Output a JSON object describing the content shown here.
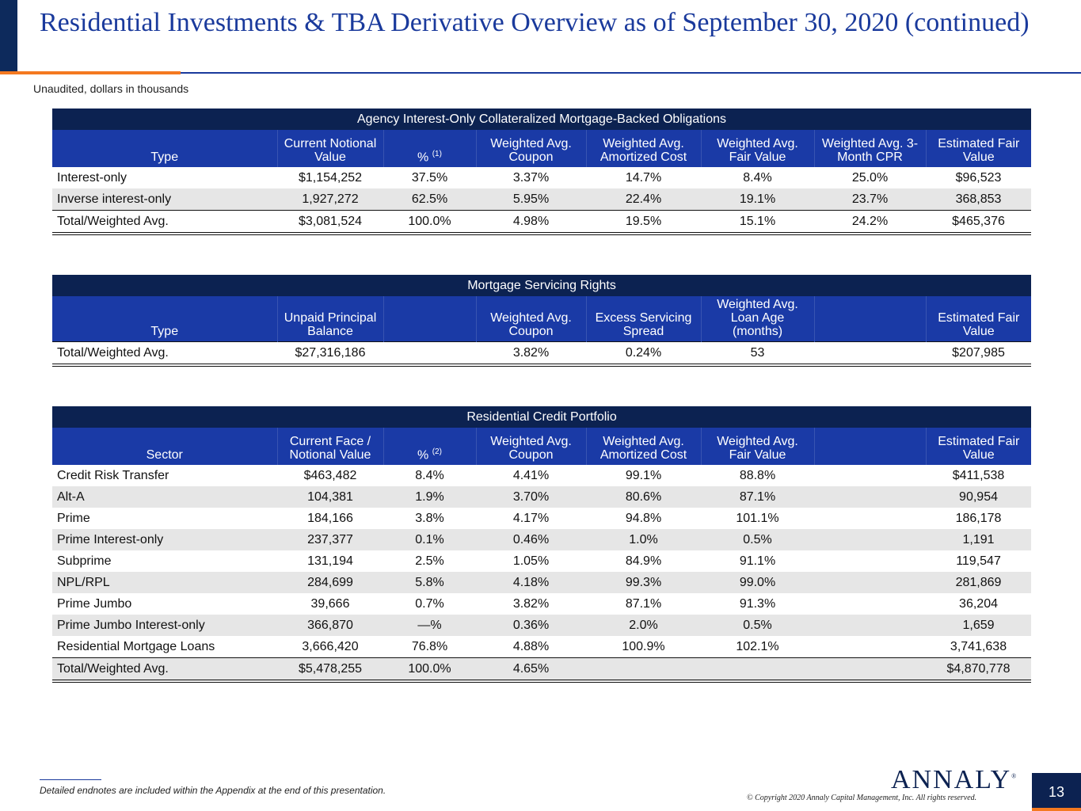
{
  "header": {
    "title": "Residential Investments & TBA Derivative Overview as of September 30, 2020 (continued)",
    "subtitle": "Unaudited, dollars in thousands"
  },
  "table_agency": {
    "caption": "Agency Interest-Only Collateralized Mortgage-Backed Obligations",
    "columns": [
      "Type",
      "Current Notional Value",
      "%",
      "Weighted Avg. Coupon",
      "Weighted Avg. Amortized Cost",
      "Weighted Avg. Fair Value",
      "Weighted Avg. 3-Month CPR",
      "Estimated Fair Value"
    ],
    "pct_note": "(1)",
    "rows": [
      [
        "Interest-only",
        "$1,154,252",
        "37.5%",
        "3.37%",
        "14.7%",
        "8.4%",
        "25.0%",
        "$96,523"
      ],
      [
        "Inverse interest-only",
        "1,927,272",
        "62.5%",
        "5.95%",
        "22.4%",
        "19.1%",
        "23.7%",
        "368,853"
      ]
    ],
    "total": [
      "Total/Weighted Avg.",
      "$3,081,524",
      "100.0%",
      "4.98%",
      "19.5%",
      "15.1%",
      "24.2%",
      "$465,376"
    ]
  },
  "table_msr": {
    "caption": "Mortgage Servicing Rights",
    "columns": [
      "Type",
      "Unpaid Principal Balance",
      "",
      "Weighted Avg. Coupon",
      "Excess Servicing Spread",
      "Weighted Avg. Loan Age (months)",
      "",
      "Estimated Fair Value"
    ],
    "total": [
      "Total/Weighted Avg.",
      "$27,316,186",
      "",
      "3.82%",
      "0.24%",
      "53",
      "",
      "$207,985"
    ]
  },
  "table_credit": {
    "caption": "Residential Credit Portfolio",
    "columns": [
      "Sector",
      "Current Face / Notional Value",
      "%",
      "Weighted Avg. Coupon",
      "Weighted Avg. Amortized Cost",
      "Weighted Avg. Fair Value",
      "",
      "Estimated Fair Value"
    ],
    "pct_note": "(2)",
    "rows": [
      [
        "Credit Risk Transfer",
        "$463,482",
        "8.4%",
        "4.41%",
        "99.1%",
        "88.8%",
        "",
        "$411,538"
      ],
      [
        "Alt-A",
        "104,381",
        "1.9%",
        "3.70%",
        "80.6%",
        "87.1%",
        "",
        "90,954"
      ],
      [
        "Prime",
        "184,166",
        "3.8%",
        "4.17%",
        "94.8%",
        "101.1%",
        "",
        "186,178"
      ],
      [
        "Prime Interest-only",
        "237,377",
        "0.1%",
        "0.46%",
        "1.0%",
        "0.5%",
        "",
        "1,191"
      ],
      [
        "Subprime",
        "131,194",
        "2.5%",
        "1.05%",
        "84.9%",
        "91.1%",
        "",
        "119,547"
      ],
      [
        "NPL/RPL",
        "284,699",
        "5.8%",
        "4.18%",
        "99.3%",
        "99.0%",
        "",
        "281,869"
      ],
      [
        "Prime Jumbo",
        "39,666",
        "0.7%",
        "3.82%",
        "87.1%",
        "91.3%",
        "",
        "36,204"
      ],
      [
        "Prime Jumbo Interest-only",
        "366,870",
        "—%",
        "0.36%",
        "2.0%",
        "0.5%",
        "",
        "1,659"
      ],
      [
        "Residential Mortgage Loans",
        "3,666,420",
        "76.8%",
        "4.88%",
        "100.9%",
        "102.1%",
        "",
        "3,741,638"
      ]
    ],
    "total": [
      "Total/Weighted Avg.",
      "$5,478,255",
      "100.0%",
      "4.65%",
      "",
      "",
      "",
      "$4,870,778"
    ]
  },
  "footer": {
    "footnote": "Detailed endnotes are included within the Appendix at the end of this presentation.",
    "logo": "ANNALY",
    "logo_mark": "®",
    "copyright": "© Copyright 2020 Annaly Capital Management, Inc.  All rights reserved.",
    "page_number": "13"
  }
}
